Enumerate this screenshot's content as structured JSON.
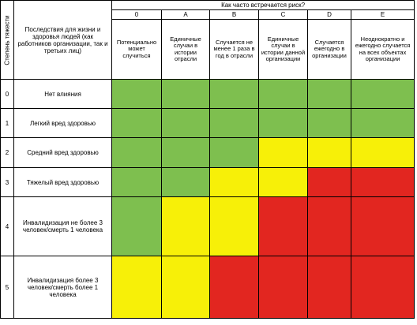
{
  "headers": {
    "severity": "Степень тяжести",
    "consequences": "Последствия для жизни и здоровья людей (как работников организации, так и третьих лиц)",
    "frequency": "Как часто встречается риск?"
  },
  "frequency_columns": [
    {
      "code": "0",
      "desc": "Потенциально может случиться"
    },
    {
      "code": "A",
      "desc": "Единичные случаи в истории отрасли"
    },
    {
      "code": "B",
      "desc": "Случается не менее 1 раза в год в отрасли"
    },
    {
      "code": "C",
      "desc": "Единичные случаи в истории данной организации"
    },
    {
      "code": "D",
      "desc": "Случается ежегодно в организации"
    },
    {
      "code": "E",
      "desc": "Неоднократно и ежегодно случается на всех объектах организации"
    }
  ],
  "rows": [
    {
      "severity": "0",
      "label": "Нет влияния",
      "cells": [
        "green",
        "green",
        "green",
        "green",
        "green",
        "green"
      ]
    },
    {
      "severity": "1",
      "label": "Легкий вред здоровью",
      "cells": [
        "green",
        "green",
        "green",
        "green",
        "green",
        "green"
      ]
    },
    {
      "severity": "2",
      "label": "Средний вред здоровью",
      "cells": [
        "green",
        "green",
        "green",
        "yellow",
        "yellow",
        "yellow"
      ]
    },
    {
      "severity": "3",
      "label": "Тяжелый вред здоровью",
      "cells": [
        "green",
        "green",
        "yellow",
        "yellow",
        "red",
        "red"
      ]
    },
    {
      "severity": "4",
      "label": "Инвалидизация не более 3 человек/смерть 1 человека",
      "cells": [
        "green",
        "yellow",
        "yellow",
        "red",
        "red",
        "red"
      ]
    },
    {
      "severity": "5",
      "label": "Инвалидизация более 3 человек/смерть более 1 человека",
      "cells": [
        "yellow",
        "yellow",
        "red",
        "red",
        "red",
        "red"
      ]
    }
  ],
  "colors": {
    "green": "#7ebf4f",
    "yellow": "#f7f008",
    "red": "#e22620"
  }
}
